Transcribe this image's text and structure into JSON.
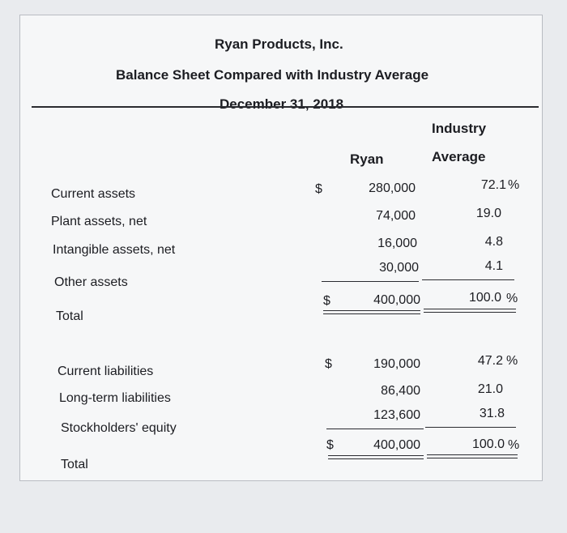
{
  "header": {
    "company": "Ryan Products, Inc.",
    "report": "Balance Sheet Compared with Industry Average",
    "date": "December 31, 2018"
  },
  "columns": {
    "ryan": "Ryan",
    "industry_line1": "Industry",
    "industry_line2": "Average"
  },
  "assets": {
    "rows": [
      {
        "label": "Current assets",
        "currency": "$",
        "ryan": "280,000",
        "industry": "72.1",
        "pct": "%"
      },
      {
        "label": "Plant assets, net",
        "currency": "",
        "ryan": "74,000",
        "industry": "19.0",
        "pct": ""
      },
      {
        "label": "Intangible assets, net",
        "currency": "",
        "ryan": "16,000",
        "industry": "4.8",
        "pct": ""
      },
      {
        "label": "Other assets",
        "currency": "",
        "ryan": "30,000",
        "industry": "4.1",
        "pct": ""
      }
    ],
    "total": {
      "label": "Total",
      "currency": "$",
      "ryan": "400,000",
      "industry": "100.0",
      "pct": "%"
    }
  },
  "liabilities": {
    "rows": [
      {
        "label": "Current liabilities",
        "currency": "$",
        "ryan": "190,000",
        "industry": "47.2",
        "pct": "%"
      },
      {
        "label": "Long-term liabilities",
        "currency": "",
        "ryan": "86,400",
        "industry": "21.0",
        "pct": ""
      },
      {
        "label": "Stockholders' equity",
        "currency": "",
        "ryan": "123,600",
        "industry": "31.8",
        "pct": ""
      }
    ],
    "total": {
      "label": "Total",
      "currency": "$",
      "ryan": "400,000",
      "industry": "100.0",
      "pct": "%"
    }
  }
}
